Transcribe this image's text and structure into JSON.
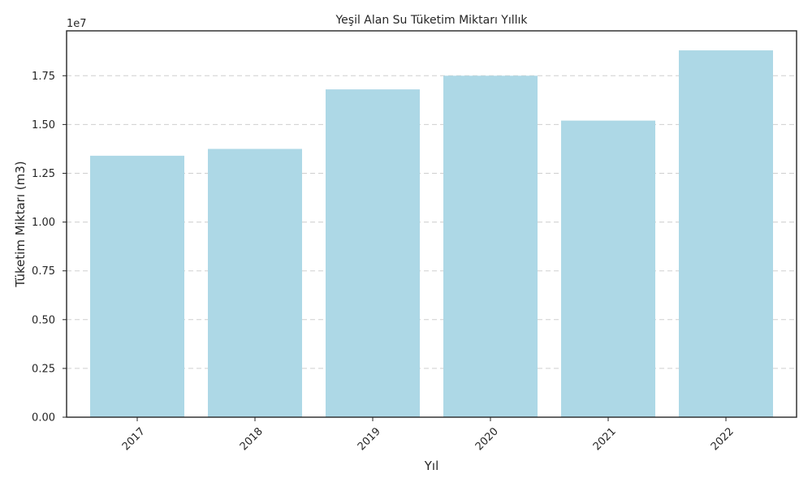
{
  "chart_data": {
    "type": "bar",
    "title": "Yeşil Alan Su Tüketim Miktarı Yıllık",
    "xlabel": "Yıl",
    "ylabel": "Tüketim Miktarı (m3)",
    "y_offset_label": "1e7",
    "categories": [
      "2017",
      "2018",
      "2019",
      "2020",
      "2021",
      "2022"
    ],
    "values": [
      13400000,
      13750000,
      16800000,
      17500000,
      15200000,
      18800000
    ],
    "ylim": [
      0,
      19800000
    ],
    "yticks": [
      0,
      2500000,
      5000000,
      7500000,
      10000000,
      12500000,
      15000000,
      17500000
    ],
    "ytick_labels": [
      "0.00",
      "0.25",
      "0.50",
      "0.75",
      "1.00",
      "1.25",
      "1.50",
      "1.75"
    ],
    "bar_color": "#add8e6",
    "grid": "y-dashed",
    "xtick_rotation_deg": 45
  }
}
